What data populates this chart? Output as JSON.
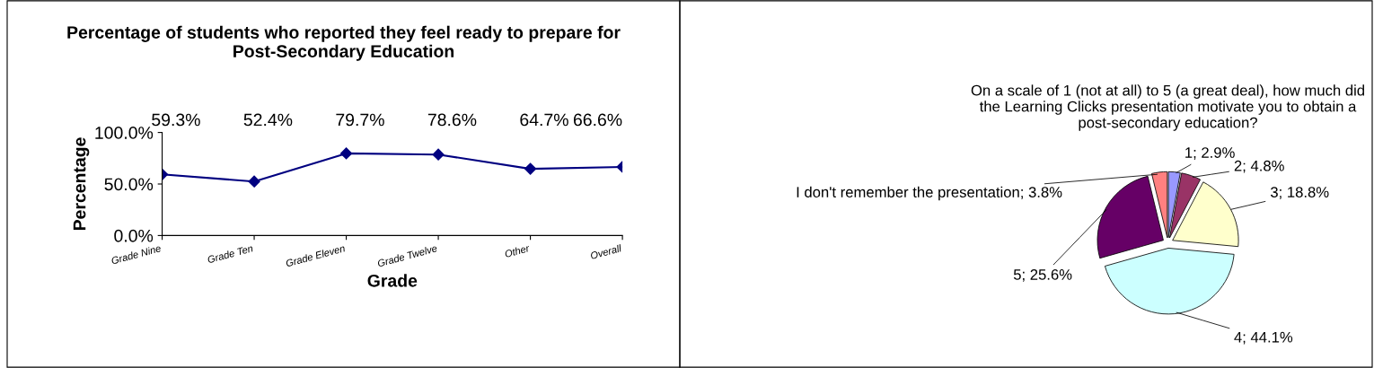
{
  "chart_data": [
    {
      "type": "line",
      "title": "Percentage of students who reported they feel ready to prepare for Post-Secondary Education",
      "xlabel": "Grade",
      "ylabel": "Percentage",
      "categories": [
        "Grade Nine",
        "Grade Ten",
        "Grade Eleven",
        "Grade Twelve",
        "Other",
        "Overall"
      ],
      "series": [
        {
          "color": "#000080",
          "values": [
            59.3,
            52.4,
            79.7,
            78.6,
            64.7,
            66.6
          ],
          "value_labels": [
            "59.3%",
            "52.4%",
            "79.7%",
            "78.6%",
            "64.7%",
            "66.6%"
          ]
        }
      ],
      "ylim": [
        0,
        100
      ],
      "yticks": [
        {
          "value": 0,
          "label": "0.0%"
        },
        {
          "value": 50,
          "label": "50.0%"
        },
        {
          "value": 100,
          "label": "100.0%"
        }
      ],
      "marker": "diamond",
      "grid": false,
      "legend": false
    },
    {
      "type": "pie",
      "title": "On a scale of 1 (not at all) to 5 (a great deal), how much did the Learning Clicks presentation motivate you to obtain a post-secondary education?",
      "categories": [
        "1",
        "2",
        "3",
        "4",
        "5",
        "I don't remember the presentation"
      ],
      "values": [
        2.9,
        4.8,
        18.8,
        44.1,
        25.6,
        3.8
      ],
      "value_labels": [
        "2.9%",
        "4.8%",
        "18.8%",
        "44.1%",
        "25.6%",
        "3.8%"
      ],
      "colors": [
        "#9999ff",
        "#993366",
        "#ffffcc",
        "#ccffff",
        "#660066",
        "#ff8080"
      ],
      "legend": false
    }
  ]
}
